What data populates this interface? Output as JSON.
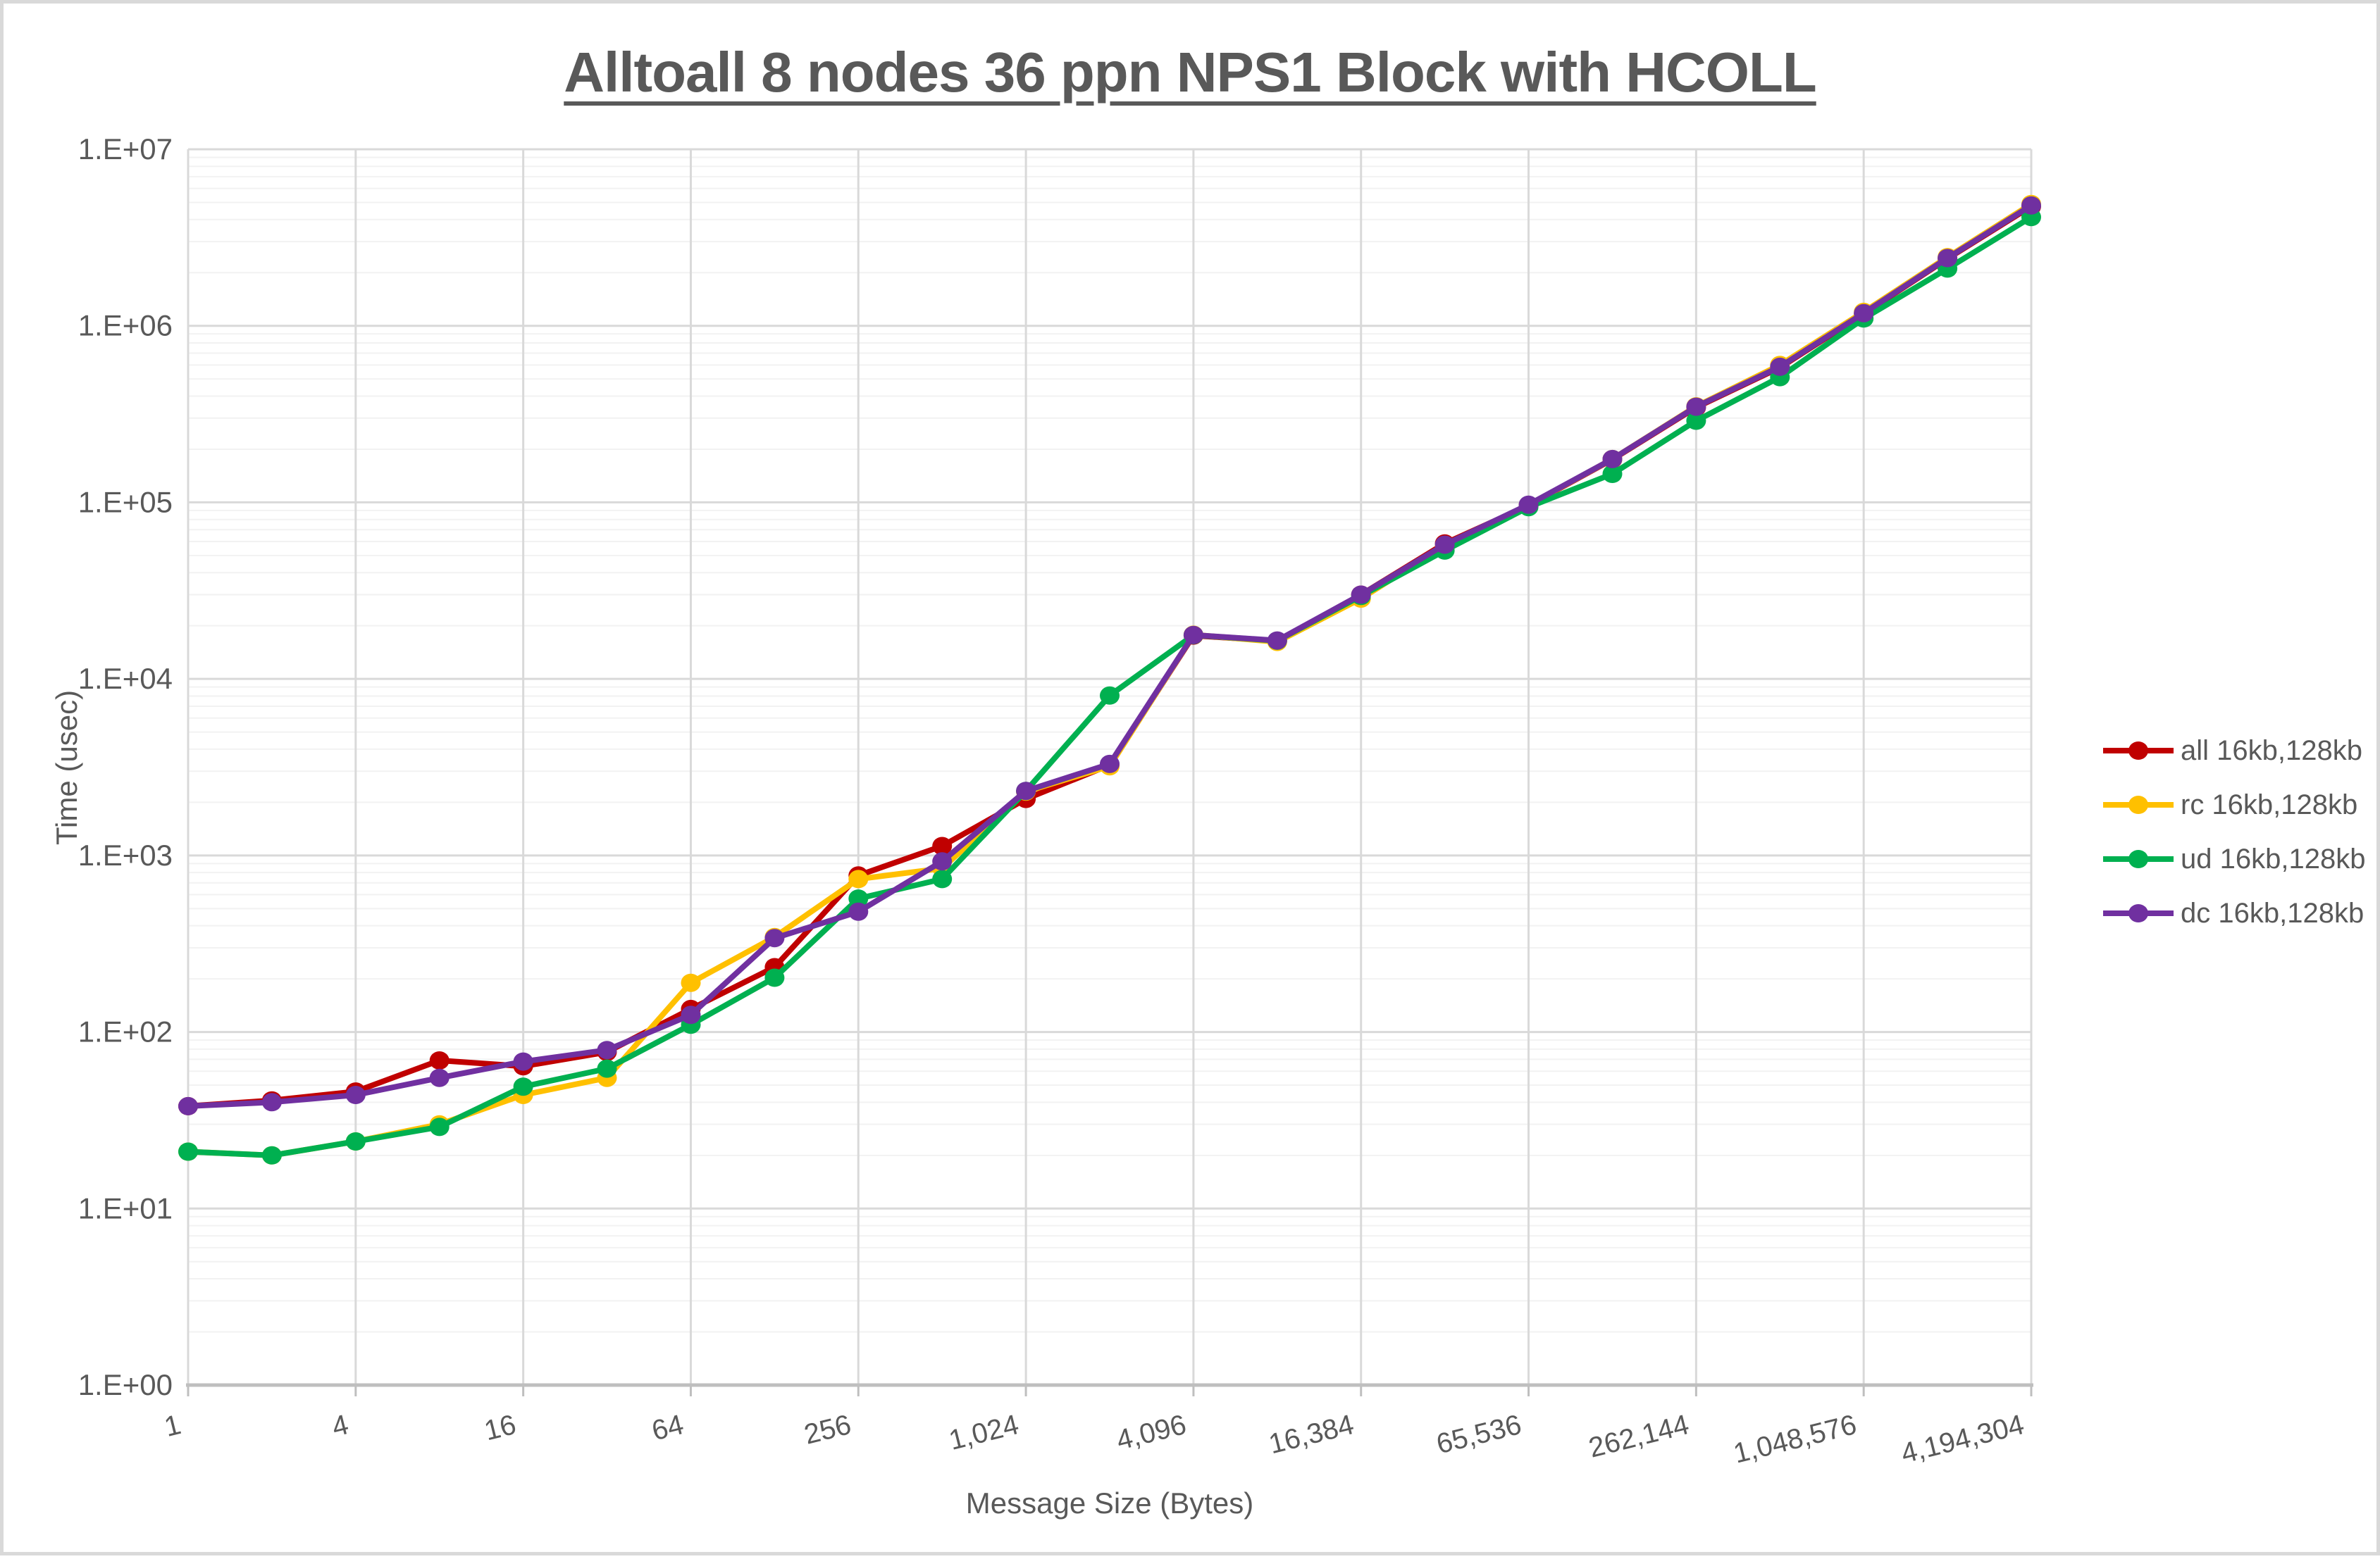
{
  "title": "Alltoall 8 nodes 36 ppn NPS1 Block with HCOLL",
  "colors": {
    "title_text": "#595959",
    "axis_text": "#595959",
    "major_gridline": "#D9D9D9",
    "minor_gridline": "#F2F2F2",
    "axis_line": "#BFBFBF",
    "page_frame": "#D9D9D9",
    "background": "#FFFFFF"
  },
  "chart_data": {
    "type": "line",
    "title": "Alltoall 8 nodes 36 ppn NPS1 Block with HCOLL",
    "xlabel": "Message Size (Bytes)",
    "ylabel": "Time (usec)",
    "x_scale": "log2",
    "y_scale": "log10",
    "ylim": [
      1,
      10000000
    ],
    "y_tick_labels": [
      "1.E+00",
      "1.E+01",
      "1.E+02",
      "1.E+03",
      "1.E+04",
      "1.E+05",
      "1.E+06",
      "1.E+07"
    ],
    "x_tick_labels": [
      "1",
      "4",
      "16",
      "64",
      "256",
      "1,024",
      "4,096",
      "16,384",
      "65,536",
      "262,144",
      "1,048,576",
      "4,194,304"
    ],
    "grid": "major both axes, minor log lines on y",
    "legend_position": "right",
    "categories": [
      1,
      2,
      4,
      8,
      16,
      32,
      64,
      128,
      256,
      512,
      1024,
      2048,
      4096,
      8192,
      16384,
      32768,
      65536,
      131072,
      262144,
      524288,
      1048576,
      2097152,
      4194304
    ],
    "series": [
      {
        "name": "all 16kb,128kb",
        "color": "#C00000",
        "values": [
          38,
          41,
          46,
          69,
          64,
          77,
          135,
          233,
          770,
          1130,
          2090,
          3250,
          17600,
          16400,
          30000,
          58500,
          96000,
          175000,
          345000,
          580000,
          1170000,
          2400000,
          4750000
        ]
      },
      {
        "name": "rc 16kb,128kb",
        "color": "#FFC000",
        "values": [
          21,
          20,
          24,
          30,
          44,
          55,
          190,
          345,
          735,
          845,
          2300,
          3200,
          17800,
          16200,
          28500,
          57000,
          96500,
          176000,
          350000,
          600000,
          1200000,
          2450000,
          4900000
        ]
      },
      {
        "name": "ud 16kb,128kb",
        "color": "#00B050",
        "values": [
          21,
          20,
          24,
          29,
          49,
          62,
          110,
          203,
          570,
          735,
          2320,
          8050,
          17700,
          16450,
          29500,
          53300,
          94000,
          145000,
          290000,
          512000,
          1100000,
          2110000,
          4130000
        ]
      },
      {
        "name": "dc 16kb,128kb",
        "color": "#7030A0",
        "values": [
          38,
          40,
          44,
          55,
          68,
          79,
          125,
          340,
          480,
          925,
          2320,
          3300,
          17750,
          16500,
          30000,
          57600,
          97000,
          176000,
          348000,
          586000,
          1180000,
          2420000,
          4810000
        ]
      }
    ]
  }
}
